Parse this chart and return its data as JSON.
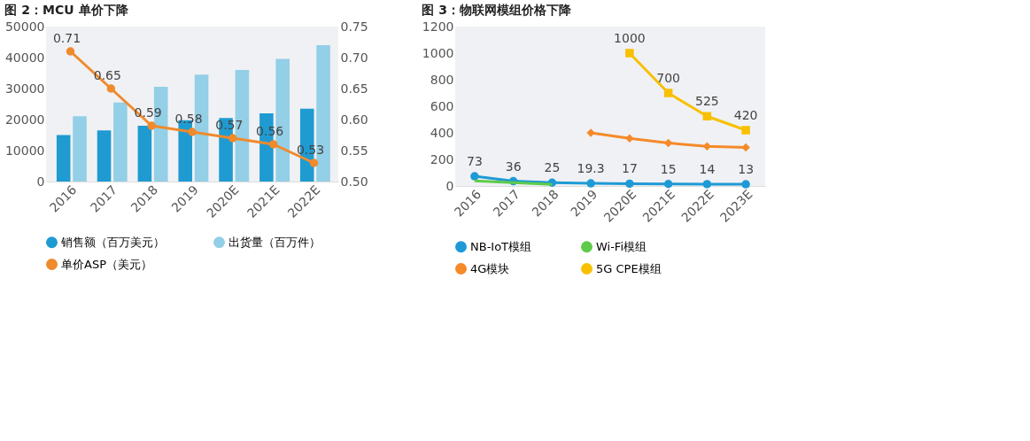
{
  "chart_data": [
    {
      "type": "bar",
      "title": "图 2：MCU 单价下降",
      "categories": [
        "2016",
        "2017",
        "2018",
        "2019",
        "2020E",
        "2021E",
        "2022E"
      ],
      "series": [
        {
          "name": "销售额（百万美元）",
          "color": "#1f9bd1",
          "values": [
            15000,
            16500,
            18000,
            19800,
            20500,
            22000,
            23500
          ]
        },
        {
          "name": "出货量（百万件）",
          "color": "#93cfe6",
          "values": [
            21100,
            25500,
            30600,
            34500,
            36000,
            39600,
            44000
          ]
        },
        {
          "name": "单价ASP（美元）",
          "color": "#f08a2c",
          "type": "line",
          "axis": "y2",
          "marker": "circle",
          "values": [
            0.71,
            0.65,
            0.59,
            0.58,
            0.57,
            0.56,
            0.53
          ],
          "value_labels": [
            "0.71",
            "0.65",
            "0.59",
            "0.58",
            "0.57",
            "0.56",
            "0.53"
          ]
        }
      ],
      "ylim": [
        0,
        50000
      ],
      "yticks": [
        0,
        10000,
        20000,
        30000,
        40000,
        50000
      ],
      "y2lim": [
        0.5,
        0.75
      ],
      "y2ticks": [
        {
          "value": 0.5,
          "label": "0.50"
        },
        {
          "value": 0.55,
          "label": "0.55"
        },
        {
          "value": 0.6,
          "label": "0.60"
        },
        {
          "value": 0.65,
          "label": "0.65"
        },
        {
          "value": 0.7,
          "label": "0.70"
        },
        {
          "value": 0.75,
          "label": "0.75"
        }
      ],
      "legend": "bottom"
    },
    {
      "type": "line",
      "title": "图 3：物联网模组价格下降",
      "categories": [
        "2016",
        "2017",
        "2018",
        "2019",
        "2020E",
        "2021E",
        "2022E",
        "2023E"
      ],
      "series": [
        {
          "name": "NB-IoT模组",
          "color": "#1e9ad6",
          "marker": "circle",
          "values": [
            73,
            36,
            25,
            19.3,
            17,
            15,
            14,
            13
          ],
          "value_labels": [
            "73",
            "36",
            "25",
            "19.3",
            "17",
            "15",
            "14",
            "13"
          ]
        },
        {
          "name": "Wi-Fi模组",
          "color": "#5ecb4a",
          "values": [
            38,
            25,
            11,
            null,
            null,
            null,
            null,
            null
          ]
        },
        {
          "name": "4G模块",
          "color": "#f58a2a",
          "marker": "diamond",
          "values": [
            null,
            null,
            null,
            400,
            358,
            323,
            298,
            290
          ]
        },
        {
          "name": "5G CPE模组",
          "color": "#f8c000",
          "marker": "square",
          "values": [
            null,
            null,
            null,
            null,
            1000,
            700,
            525,
            420
          ],
          "value_labels": [
            null,
            null,
            null,
            null,
            "1000",
            "700",
            "525",
            "420"
          ]
        }
      ],
      "ylim": [
        0,
        1200
      ],
      "yticks": [
        0,
        200,
        400,
        600,
        800,
        1000,
        1200
      ],
      "legend": "bottom"
    }
  ]
}
